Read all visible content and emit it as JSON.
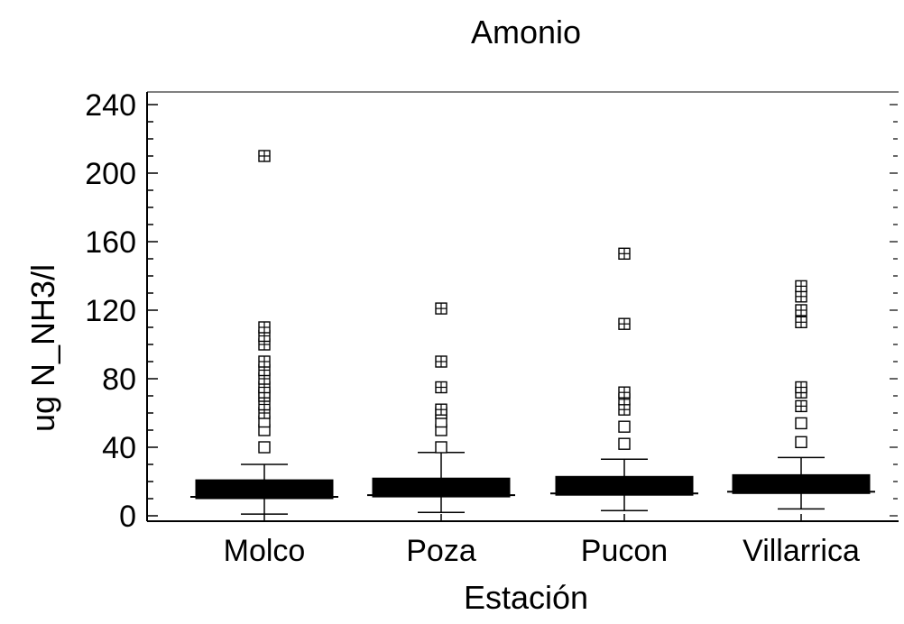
{
  "chart_data": {
    "type": "box",
    "title": "Amonio",
    "xlabel": "Estación",
    "ylabel": "ug N_NH3/l",
    "ylim": [
      0,
      250
    ],
    "yticks": [
      0,
      40,
      80,
      120,
      160,
      200,
      240
    ],
    "categories": [
      "Molco",
      "Poza",
      "Pucon",
      "Villarrica"
    ],
    "boxes": [
      {
        "name": "Molco",
        "whisker_low": 1,
        "q1": 10,
        "median": 16,
        "q3": 21,
        "whisker_high": 30,
        "outliers_square": [
          40,
          50,
          55
        ],
        "outliers_crossed": [
          60,
          65,
          70,
          72,
          75,
          80,
          85,
          90,
          100,
          105,
          110,
          210
        ]
      },
      {
        "name": "Poza",
        "whisker_low": 2,
        "q1": 11,
        "median": 17,
        "q3": 22,
        "whisker_high": 37,
        "outliers_square": [
          40,
          50,
          55,
          60
        ],
        "outliers_crossed": [
          62,
          75,
          90,
          121
        ]
      },
      {
        "name": "Pucon",
        "whisker_low": 3,
        "q1": 12,
        "median": 18,
        "q3": 23,
        "whisker_high": 33,
        "outliers_square": [
          42,
          52
        ],
        "outliers_crossed": [
          62,
          68,
          72,
          112,
          153
        ]
      },
      {
        "name": "Villarrica",
        "whisker_low": 4,
        "q1": 13,
        "median": 19,
        "q3": 24,
        "whisker_high": 34,
        "outliers_square": [
          43,
          54
        ],
        "outliers_crossed": [
          64,
          72,
          75,
          113,
          120,
          128,
          134
        ]
      }
    ],
    "grid": false,
    "legend": "none"
  }
}
